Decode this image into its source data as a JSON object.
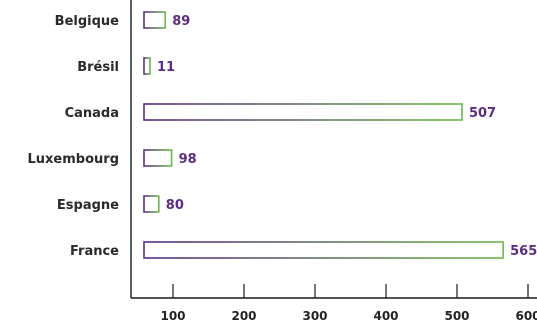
{
  "chart_data": {
    "type": "bar",
    "orientation": "horizontal",
    "categories": [
      "Belgique",
      "Brésil",
      "Canada",
      "Luxembourg",
      "Espagne",
      "France"
    ],
    "values": [
      89,
      11,
      507,
      98,
      80,
      565
    ],
    "value_labels": [
      "89",
      "11",
      "507",
      "98",
      "80",
      "565"
    ],
    "x_ticks": [
      100,
      200,
      300,
      400,
      500,
      600
    ],
    "x_tick_labels": [
      "100",
      "200",
      "300",
      "400",
      "500",
      "600"
    ],
    "xlim": [
      0,
      600
    ],
    "grid": false,
    "colors": {
      "bar_fill": "#ffffff",
      "bar_gradient_start": "#5b2d82",
      "bar_gradient_end": "#6db84a",
      "value_label": "#5b2d82",
      "axis": "#1a1a1a"
    }
  }
}
